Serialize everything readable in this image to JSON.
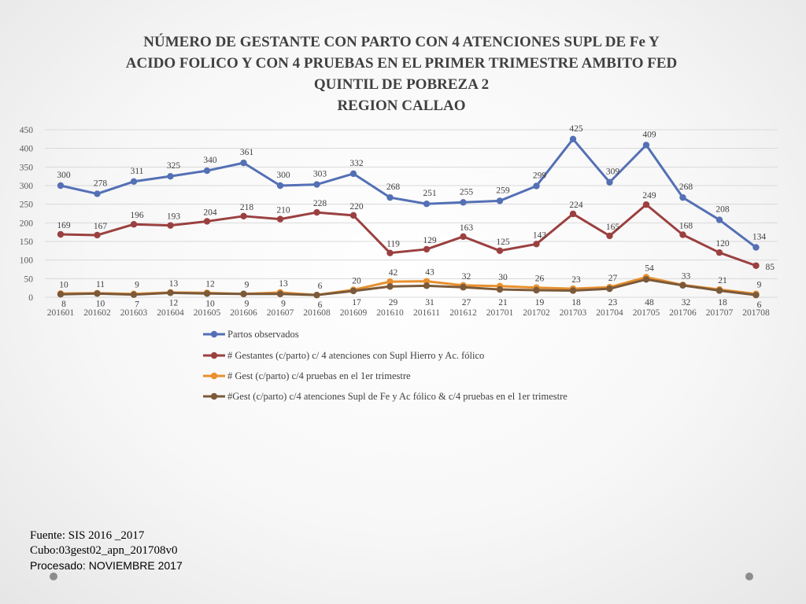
{
  "title_lines": [
    "NÚMERO DE GESTANTE  CON PARTO CON 4 ATENCIONES SUPL DE Fe Y",
    "ACIDO FOLICO  Y CON 4 PRUEBAS EN EL PRIMER TRIMESTRE AMBITO FED",
    "QUINTIL DE POBREZA  2",
    "REGION CALLAO"
  ],
  "footer": {
    "source": "Fuente: SIS 2016 _2017",
    "cube": "Cubo:03gest02_apn_201708v0",
    "processed": "Procesado: NOVIEMBRE 2017"
  },
  "chart_data": {
    "type": "line",
    "title": "NÚMERO DE GESTANTE  CON PARTO CON 4 ATENCIONES SUPL DE Fe Y ACIDO FOLICO  Y CON 4 PRUEBAS EN EL PRIMER TRIMESTRE AMBITO FED QUINTIL DE POBREZA  2 REGION CALLAO",
    "categories": [
      "201601",
      "201602",
      "201603",
      "201604",
      "201605",
      "201606",
      "201607",
      "201608",
      "201609",
      "201610",
      "201611",
      "201612",
      "201701",
      "201702",
      "201703",
      "201704",
      "201705",
      "201706",
      "201707",
      "201708"
    ],
    "ylim": [
      0,
      450
    ],
    "yticks": [
      0,
      50,
      100,
      150,
      200,
      250,
      300,
      350,
      400,
      450
    ],
    "grid": true,
    "legend_position": "bottom",
    "series": [
      {
        "name": "Partos observados",
        "color": "#5470b5",
        "values": [
          300,
          278,
          311,
          325,
          340,
          361,
          300,
          303,
          332,
          268,
          251,
          255,
          259,
          299,
          425,
          309,
          409,
          268,
          208,
          134
        ]
      },
      {
        "name": "# Gestantes (c/parto) c/ 4 atenciones con Supl Hierro y Ac. fólico",
        "color": "#9b4040",
        "values": [
          169,
          167,
          196,
          193,
          204,
          218,
          210,
          228,
          220,
          119,
          129,
          163,
          125,
          143,
          224,
          165,
          249,
          168,
          120,
          85
        ]
      },
      {
        "name": "# Gest (c/parto) c/4 pruebas en el 1er trimestre",
        "color": "#e8902e",
        "values": [
          10,
          11,
          9,
          13,
          12,
          9,
          13,
          6,
          20,
          42,
          43,
          32,
          30,
          26,
          23,
          27,
          54,
          33,
          21,
          9
        ]
      },
      {
        "name": "#Gest (c/parto) c/4 atenciones Supl de Fe y Ac fólico & c/4 pruebas en el 1er trimestre",
        "color": "#7b5a3a",
        "values": [
          8,
          10,
          7,
          12,
          10,
          9,
          9,
          6,
          17,
          29,
          31,
          27,
          21,
          19,
          18,
          23,
          48,
          32,
          18,
          6
        ]
      }
    ]
  }
}
